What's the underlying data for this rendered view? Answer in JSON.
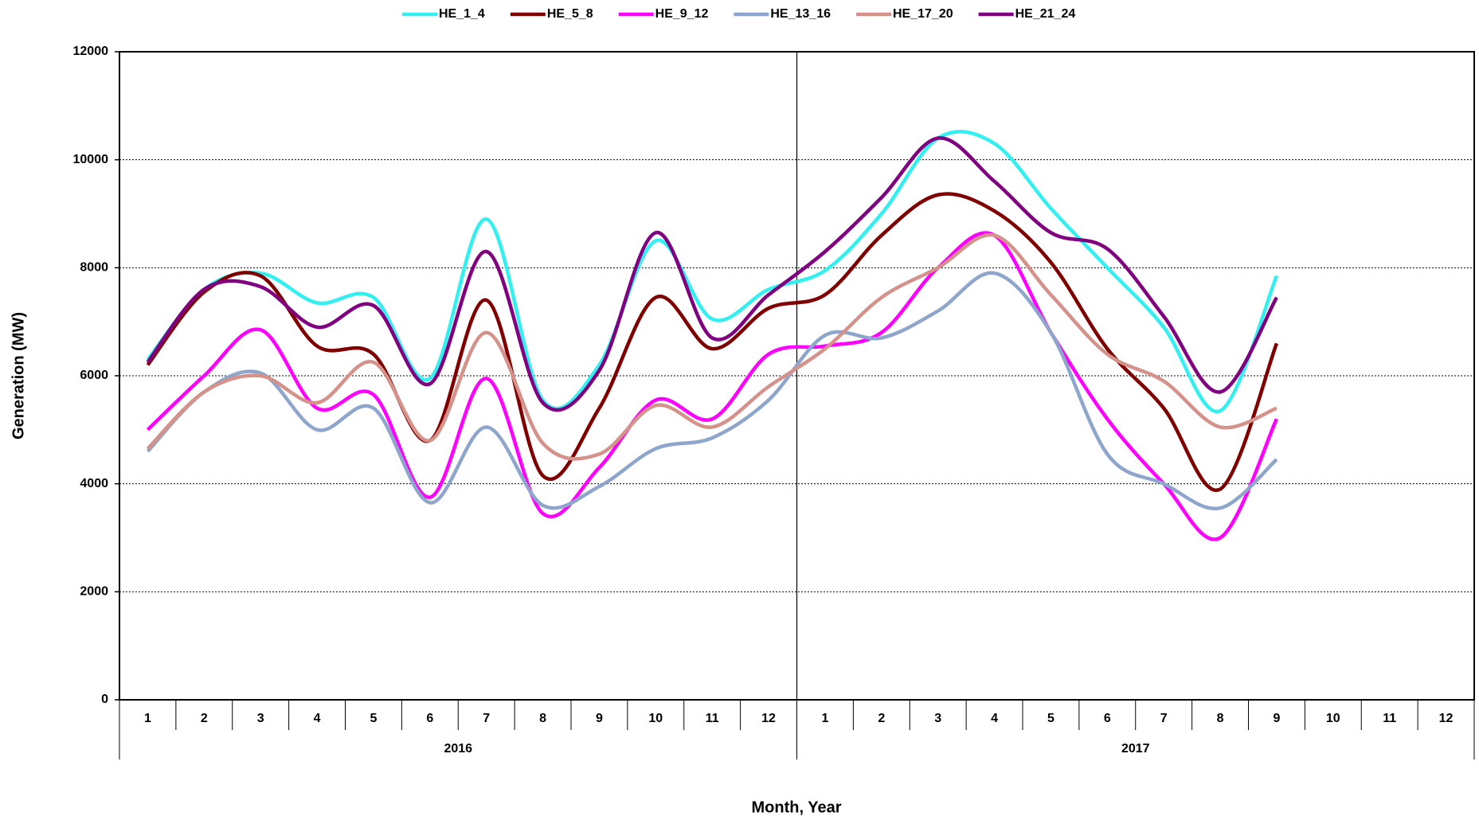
{
  "chart_data": {
    "type": "line",
    "x_title": "Month, Year",
    "y_title": "Generation (MW)",
    "categories": [
      "1",
      "2",
      "3",
      "4",
      "5",
      "6",
      "7",
      "8",
      "9",
      "10",
      "11",
      "12",
      "1",
      "2",
      "3",
      "4",
      "5",
      "6",
      "7",
      "8",
      "9",
      "10",
      "11",
      "12"
    ],
    "year_groups": [
      "2016",
      "2017"
    ],
    "ylim": [
      0,
      12000
    ],
    "yticks": [
      0,
      2000,
      4000,
      6000,
      8000,
      10000,
      12000
    ],
    "grid": true,
    "legend": "top",
    "series": [
      {
        "name": "HE_1_4",
        "color": "#33f0f0",
        "values": [
          6300,
          7600,
          7900,
          7350,
          7450,
          5950,
          8900,
          5550,
          6200,
          8500,
          7050,
          7600,
          7950,
          9000,
          10400,
          10300,
          9100,
          8000,
          6900,
          5350,
          7850,
          null,
          null,
          null
        ]
      },
      {
        "name": "HE_5_8",
        "color": "#800000",
        "values": [
          6200,
          7550,
          7850,
          6550,
          6400,
          4800,
          7400,
          4150,
          5400,
          7450,
          6500,
          7250,
          7500,
          8600,
          9350,
          9050,
          8100,
          6500,
          5400,
          3900,
          6600,
          null,
          null,
          null
        ]
      },
      {
        "name": "HE_9_12",
        "color": "#ff00ff",
        "values": [
          5000,
          6000,
          6850,
          5400,
          5650,
          3750,
          5950,
          3450,
          4300,
          5550,
          5200,
          6400,
          6550,
          6800,
          8000,
          8600,
          6800,
          5200,
          4000,
          3000,
          5200,
          null,
          null,
          null
        ]
      },
      {
        "name": "HE_13_16",
        "color": "#8ea6cc",
        "values": [
          4600,
          5700,
          6050,
          5000,
          5400,
          3650,
          5050,
          3600,
          3950,
          4650,
          4850,
          5550,
          6750,
          6700,
          7200,
          7900,
          6800,
          4550,
          4000,
          3550,
          4450,
          null,
          null,
          null
        ]
      },
      {
        "name": "HE_17_20",
        "color": "#d4928a",
        "values": [
          4650,
          5700,
          6000,
          5500,
          6250,
          4800,
          6800,
          4750,
          4550,
          5450,
          5050,
          5800,
          6500,
          7450,
          8000,
          8600,
          7500,
          6400,
          5900,
          5050,
          5400,
          null,
          null,
          null
        ]
      },
      {
        "name": "HE_21_24",
        "color": "#800080",
        "values": [
          6250,
          7600,
          7650,
          6900,
          7300,
          5850,
          8300,
          5500,
          6100,
          8650,
          6700,
          7500,
          8300,
          9300,
          10400,
          9600,
          8650,
          8350,
          7100,
          5700,
          7450,
          null,
          null,
          null
        ]
      }
    ]
  }
}
